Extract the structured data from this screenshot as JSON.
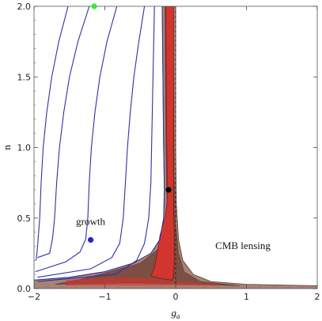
{
  "chart_data": {
    "type": "contour",
    "xlabel": "g",
    "xlabel_sub": "a",
    "ylabel": "n",
    "xlim": [
      -2,
      2
    ],
    "ylim": [
      0,
      2
    ],
    "xticks": [
      -2,
      -1,
      0,
      1,
      2
    ],
    "xtick_labels": [
      "−2",
      "−1",
      "0",
      "1",
      "2"
    ],
    "yticks": [
      0.0,
      0.5,
      1.0,
      1.5,
      2.0
    ],
    "ytick_labels": [
      "0.0",
      "0.5",
      "1.0",
      "1.5",
      "2.0"
    ],
    "grid": false,
    "reference_line": {
      "x": 0,
      "style": "dashed"
    },
    "growth_contours": [
      {
        "points": [
          [
            -1.52,
            2.0
          ],
          [
            -1.65,
            1.75
          ],
          [
            -1.75,
            1.5
          ],
          [
            -1.82,
            1.25
          ],
          [
            -1.87,
            1.0
          ],
          [
            -1.9,
            0.75
          ],
          [
            -1.92,
            0.5
          ],
          [
            -1.95,
            0.3
          ],
          [
            -1.97,
            0.2
          ]
        ]
      },
      {
        "points": [
          [
            -1.22,
            2.0
          ],
          [
            -1.38,
            1.75
          ],
          [
            -1.5,
            1.5
          ],
          [
            -1.58,
            1.25
          ],
          [
            -1.64,
            1.0
          ],
          [
            -1.68,
            0.75
          ],
          [
            -1.71,
            0.5
          ],
          [
            -1.74,
            0.35
          ],
          [
            -1.78,
            0.25
          ],
          [
            -1.95,
            0.22
          ]
        ]
      },
      {
        "points": [
          [
            -0.83,
            2.0
          ],
          [
            -0.97,
            1.75
          ],
          [
            -1.07,
            1.5
          ],
          [
            -1.14,
            1.25
          ],
          [
            -1.19,
            1.0
          ],
          [
            -1.22,
            0.75
          ],
          [
            -1.24,
            0.5
          ],
          [
            -1.27,
            0.35
          ],
          [
            -1.35,
            0.26
          ],
          [
            -1.55,
            0.19
          ],
          [
            -1.98,
            0.12
          ]
        ]
      },
      {
        "points": [
          [
            -0.44,
            2.0
          ],
          [
            -0.52,
            1.75
          ],
          [
            -0.59,
            1.5
          ],
          [
            -0.64,
            1.25
          ],
          [
            -0.68,
            1.0
          ],
          [
            -0.71,
            0.75
          ],
          [
            -0.74,
            0.5
          ],
          [
            -0.79,
            0.32
          ],
          [
            -0.9,
            0.22
          ],
          [
            -1.2,
            0.14
          ],
          [
            -1.95,
            0.08
          ]
        ]
      },
      {
        "points": [
          [
            -0.3,
            2.0
          ],
          [
            -0.31,
            1.75
          ],
          [
            -0.32,
            1.5
          ],
          [
            -0.33,
            1.25
          ],
          [
            -0.34,
            1.0
          ],
          [
            -0.35,
            0.75
          ],
          [
            -0.38,
            0.5
          ],
          [
            -0.44,
            0.32
          ],
          [
            -0.55,
            0.2
          ],
          [
            -0.85,
            0.1
          ],
          [
            -1.95,
            0.05
          ]
        ]
      }
    ],
    "cmb_lensing_outer": [
      [
        -0.19,
        2.0
      ],
      [
        -0.17,
        1.0
      ],
      [
        -0.16,
        0.7
      ],
      [
        -0.17,
        0.5
      ],
      [
        -0.22,
        0.35
      ],
      [
        -0.35,
        0.25
      ],
      [
        -0.6,
        0.18
      ],
      [
        -1.0,
        0.12
      ],
      [
        -1.5,
        0.08
      ],
      [
        -2.0,
        0.06
      ],
      [
        -2.0,
        0.0
      ],
      [
        2.0,
        0.0
      ],
      [
        2.0,
        0.02
      ],
      [
        1.0,
        0.03
      ],
      [
        0.5,
        0.05
      ],
      [
        0.25,
        0.1
      ],
      [
        0.1,
        0.2
      ],
      [
        0.04,
        0.35
      ],
      [
        0.01,
        0.6
      ],
      [
        0.0,
        1.0
      ],
      [
        0.0,
        2.0
      ]
    ],
    "cmb_lensing_inner": [
      [
        -0.15,
        2.0
      ],
      [
        -0.14,
        1.2
      ],
      [
        -0.13,
        0.8
      ],
      [
        -0.12,
        0.6
      ],
      [
        -0.14,
        0.45
      ],
      [
        -0.24,
        0.28
      ],
      [
        -0.5,
        0.18
      ],
      [
        -1.0,
        0.11
      ],
      [
        -1.3,
        0.07
      ],
      [
        -1.7,
        0.03
      ],
      [
        -0.6,
        0.04
      ],
      [
        0.3,
        0.03
      ],
      [
        0.9,
        0.02
      ],
      [
        0.35,
        0.05
      ],
      [
        0.12,
        0.12
      ],
      [
        0.04,
        0.25
      ],
      [
        0.0,
        0.45
      ],
      [
        -0.02,
        0.8
      ],
      [
        -0.03,
        1.5
      ],
      [
        -0.04,
        2.0
      ]
    ],
    "red_region": [
      [
        -0.14,
        2.0
      ],
      [
        -0.13,
        1.2
      ],
      [
        -0.12,
        0.8
      ],
      [
        -0.12,
        0.62
      ],
      [
        -0.15,
        0.5
      ],
      [
        -0.22,
        0.38
      ],
      [
        -0.25,
        0.28
      ],
      [
        -0.3,
        0.15
      ],
      [
        -0.35,
        0.09
      ],
      [
        -0.2,
        0.07
      ],
      [
        -0.05,
        0.06
      ],
      [
        -0.03,
        0.08
      ],
      [
        -0.02,
        0.2
      ],
      [
        -0.02,
        0.4
      ],
      [
        -0.03,
        0.6
      ],
      [
        -0.03,
        1.0
      ],
      [
        -0.03,
        1.6
      ],
      [
        -0.03,
        2.0
      ]
    ],
    "red_band": [
      [
        -1.55,
        0.06
      ],
      [
        -1.2,
        0.07
      ],
      [
        -0.9,
        0.08
      ],
      [
        -0.6,
        0.08
      ],
      [
        -0.3,
        0.07
      ],
      [
        0.0,
        0.05
      ],
      [
        0.3,
        0.04
      ],
      [
        0.6,
        0.03
      ],
      [
        0.6,
        0.02
      ],
      [
        0.2,
        0.02
      ],
      [
        -0.3,
        0.02
      ],
      [
        -0.9,
        0.02
      ],
      [
        -1.55,
        0.02
      ]
    ],
    "points": [
      {
        "x": -1.15,
        "y": 2.0,
        "color": "#33ee33"
      },
      {
        "x": -1.2,
        "y": 0.345,
        "color": "#2222dd"
      },
      {
        "x": -0.1,
        "y": 0.7,
        "color": "#000000"
      }
    ],
    "annotations": [
      {
        "text": "growth",
        "x": -1.2,
        "y": 0.45
      },
      {
        "text": "CMB lensing",
        "x": 0.95,
        "y": 0.28
      }
    ],
    "colors": {
      "contour_line": "#3030a8",
      "lensing_fill": "#8a5a48",
      "lensing_edge": "#5a3a30",
      "red_fill": "#e0302a",
      "red_edge": "#801818"
    }
  }
}
